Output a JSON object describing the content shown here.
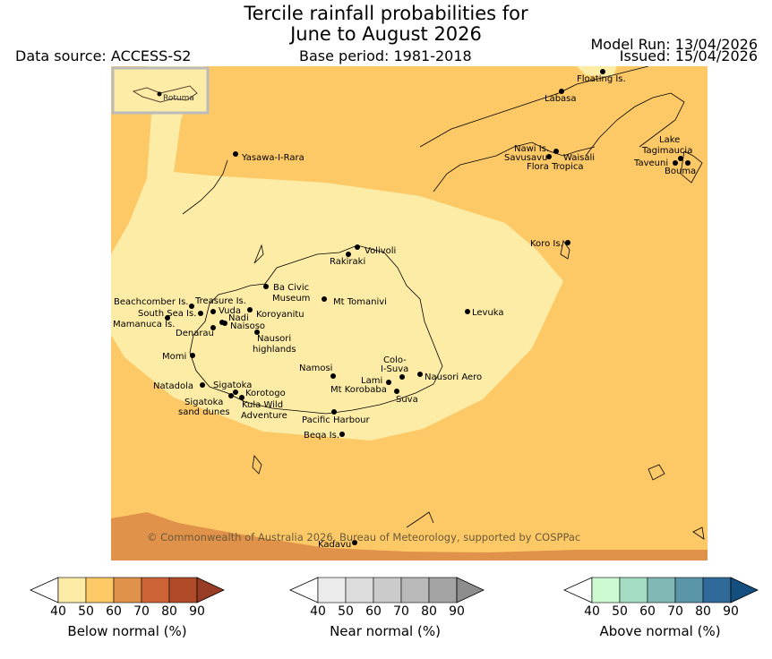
{
  "title_line1": "Tercile rainfall probabilities for",
  "title_line2": "June to August 2026",
  "data_source": "Data source: ACCESS-S2",
  "base_period": "Base period: 1981-2018",
  "model_run": "Model Run: 13/04/2026",
  "issued": "Issued: 15/04/2026",
  "copyright": "© Commonwealth of Australia 2026, Bureau of Meteorology, supported by COSPPac",
  "inset_label": "Rotuma",
  "colors": {
    "bn40": "#fdeca6",
    "bn50": "#fdc967",
    "bn60": "#e1924a",
    "bn70": "#cc6336",
    "bn80": "#b04a28",
    "bn90": "#993c25",
    "nn": [
      "#ebebeb",
      "#dcdcdc",
      "#cbcbcb",
      "#b9b9b9",
      "#a4a4a4",
      "#8d8d8d"
    ],
    "an": [
      "#cdfbd1",
      "#a3dcc3",
      "#7fb8b5",
      "#5a95a8",
      "#306a98",
      "#144f80"
    ]
  },
  "places": [
    {
      "name": "Floating Is."
    },
    {
      "name": "Labasa"
    },
    {
      "name": "Yasawa-I-Rara"
    },
    {
      "name": "Nawi Is."
    },
    {
      "name": "Savusavu"
    },
    {
      "name": "Waisali"
    },
    {
      "name": "Flora Tropica"
    },
    {
      "name": "Lake"
    },
    {
      "name": "Tagimaucia"
    },
    {
      "name": "Taveuni"
    },
    {
      "name": "Bouma"
    },
    {
      "name": "Koro Is."
    },
    {
      "name": "Volivoli"
    },
    {
      "name": "Rakiraki"
    },
    {
      "name": "Ba Civic"
    },
    {
      "name": "Museum"
    },
    {
      "name": "Mt Tomanivi"
    },
    {
      "name": "Beachcomber Is."
    },
    {
      "name": "Treasure Is."
    },
    {
      "name": "South Sea Is."
    },
    {
      "name": "Vuda"
    },
    {
      "name": "Koroyanitu"
    },
    {
      "name": "Nadi"
    },
    {
      "name": "Mamanuca Is."
    },
    {
      "name": "Naisoso"
    },
    {
      "name": "Denarau"
    },
    {
      "name": "Nausori"
    },
    {
      "name": "highlands"
    },
    {
      "name": "Levuka"
    },
    {
      "name": "Momi"
    },
    {
      "name": "Colo-"
    },
    {
      "name": "I-Suva"
    },
    {
      "name": "Namosi"
    },
    {
      "name": "Nausori Aero"
    },
    {
      "name": "Lami"
    },
    {
      "name": "Natadola"
    },
    {
      "name": "Sigatoka"
    },
    {
      "name": "Mt Korobaba"
    },
    {
      "name": "Korotogo"
    },
    {
      "name": "Suva"
    },
    {
      "name": "Sigatoka"
    },
    {
      "name": "Kula Wild"
    },
    {
      "name": "sand dunes"
    },
    {
      "name": "Adventure"
    },
    {
      "name": "Pacific Harbour"
    },
    {
      "name": "Beqa Is."
    },
    {
      "name": "Kadavu"
    }
  ],
  "colorbars": [
    {
      "label": "Below normal (%)",
      "ticks": [
        "40",
        "50",
        "60",
        "70",
        "80",
        "90"
      ]
    },
    {
      "label": "Near normal (%)",
      "ticks": [
        "40",
        "50",
        "60",
        "70",
        "80",
        "90"
      ]
    },
    {
      "label": "Above normal (%)",
      "ticks": [
        "40",
        "50",
        "60",
        "70",
        "80",
        "90"
      ]
    }
  ]
}
